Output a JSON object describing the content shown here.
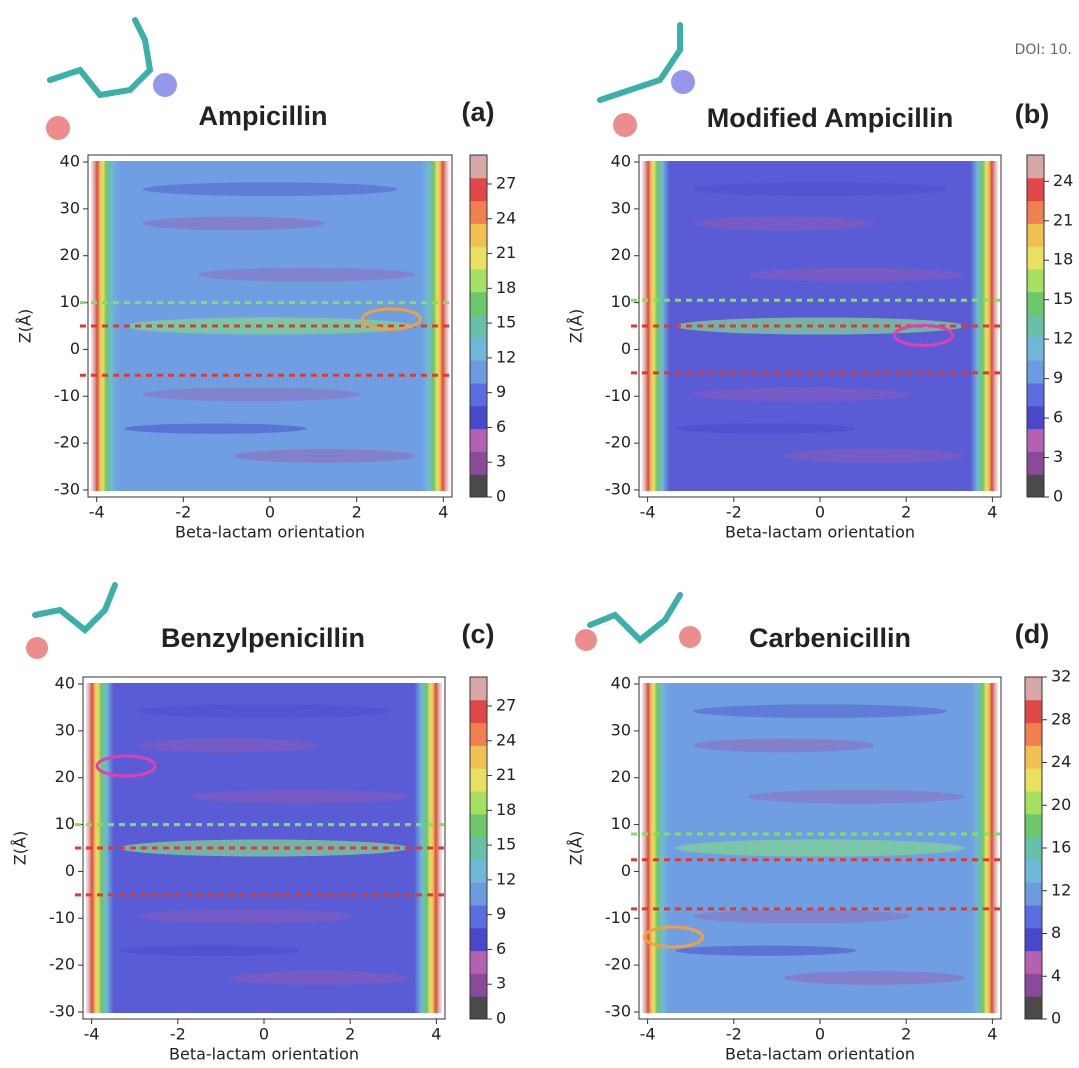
{
  "doi_text": "DOI: 10.",
  "chart_data": [
    {
      "type": "contour",
      "title": "Ampicillin",
      "panel_label": "(a)",
      "xlabel": "Beta-lactam orientation",
      "ylabel": "Z(Å)",
      "xlim": [
        -4.2,
        4.2
      ],
      "xticks": [
        -4,
        -2,
        0,
        2,
        4
      ],
      "ylim": [
        -31.5,
        41.5
      ],
      "yticks": [
        -30,
        -20,
        -10,
        0,
        10,
        20,
        30,
        40
      ],
      "field_color": "#6f9fe2",
      "colorbar_lim": [
        0,
        29.5
      ],
      "colorbar_ticks": [
        0,
        3,
        6,
        9,
        12,
        15,
        18,
        21,
        24,
        27
      ],
      "lines": [
        {
          "y": 10,
          "color": "#7fe35a"
        },
        {
          "y": 5,
          "color": "#df3a2a"
        },
        {
          "y": -5.5,
          "color": "#df3a2a"
        }
      ],
      "highlights": [
        {
          "x": 2.8,
          "y": 6.5,
          "color": "#f0a040"
        }
      ]
    },
    {
      "type": "contour",
      "title": "Modified Ampicillin",
      "panel_label": "(b)",
      "xlabel": "Beta-lactam orientation",
      "ylabel": "Z(Å)",
      "xlim": [
        -4.2,
        4.2
      ],
      "xticks": [
        -4,
        -2,
        0,
        2,
        4
      ],
      "ylim": [
        -31.5,
        41.5
      ],
      "yticks": [
        -30,
        -20,
        -10,
        0,
        10,
        20,
        30,
        40
      ],
      "field_color": "#5a5cd6",
      "colorbar_lim": [
        0,
        26
      ],
      "colorbar_ticks": [
        0,
        3,
        6,
        9,
        12,
        15,
        18,
        21,
        24
      ],
      "lines": [
        {
          "y": 10.5,
          "color": "#7fe35a"
        },
        {
          "y": 5,
          "color": "#df3a2a"
        },
        {
          "y": -5,
          "color": "#df3a2a"
        }
      ],
      "highlights": [
        {
          "x": 2.4,
          "y": 3,
          "color": "#e040b0"
        }
      ]
    },
    {
      "type": "contour",
      "title": "Benzylpenicillin",
      "panel_label": "(c)",
      "xlabel": "Beta-lactam orientation",
      "ylabel": "Z(Å)",
      "xlim": [
        -4.2,
        4.2
      ],
      "xticks": [
        -4,
        -2,
        0,
        2,
        4
      ],
      "ylim": [
        -31.5,
        41.5
      ],
      "yticks": [
        -30,
        -20,
        -10,
        0,
        10,
        20,
        30,
        40
      ],
      "field_color": "#5a5cd6",
      "colorbar_lim": [
        0,
        29.5
      ],
      "colorbar_ticks": [
        0,
        3,
        6,
        9,
        12,
        15,
        18,
        21,
        24,
        27
      ],
      "lines": [
        {
          "y": 10,
          "color": "#7fe35a"
        },
        {
          "y": 5,
          "color": "#df3a2a"
        },
        {
          "y": -5,
          "color": "#df3a2a"
        }
      ],
      "highlights": [
        {
          "x": -3.2,
          "y": 22.5,
          "color": "#e040b0"
        }
      ]
    },
    {
      "type": "contour",
      "title": "Carbenicillin",
      "panel_label": "(d)",
      "xlabel": "Beta-lactam orientation",
      "ylabel": "Z(Å)",
      "xlim": [
        -4.2,
        4.2
      ],
      "xticks": [
        -4,
        -2,
        0,
        2,
        4
      ],
      "ylim": [
        -31.5,
        41.5
      ],
      "yticks": [
        -30,
        -20,
        -10,
        0,
        10,
        20,
        30,
        40
      ],
      "field_color": "#6f9fe2",
      "colorbar_lim": [
        0,
        32
      ],
      "colorbar_ticks": [
        0,
        4,
        8,
        12,
        16,
        20,
        24,
        28,
        32
      ],
      "lines": [
        {
          "y": 8,
          "color": "#7fe35a"
        },
        {
          "y": 2.5,
          "color": "#df3a2a"
        },
        {
          "y": -8,
          "color": "#df3a2a"
        }
      ],
      "highlights": [
        {
          "x": -3.4,
          "y": -14,
          "color": "#f0a040"
        }
      ]
    }
  ],
  "colormap": [
    "#4a4a4a",
    "#8a4a9a",
    "#b560b0",
    "#4848c8",
    "#5a6ee0",
    "#6d9be0",
    "#6fb8d8",
    "#67c0a8",
    "#6cc86a",
    "#a5e060",
    "#e8e060",
    "#f0c050",
    "#f08050",
    "#e04848",
    "#d8a8a8"
  ]
}
